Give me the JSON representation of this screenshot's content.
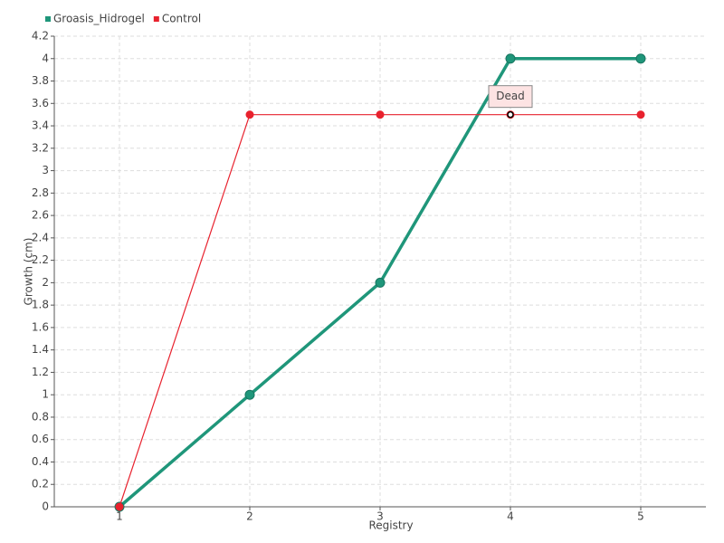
{
  "chart_data": {
    "type": "line",
    "x_label": "Registry",
    "y_label": "Growth (cm)",
    "x": [
      1,
      2,
      3,
      4,
      5
    ],
    "series": [
      {
        "name": "Groasis_Hidrogel",
        "color": "#1f967a",
        "values": [
          0,
          1,
          2,
          4,
          4
        ]
      },
      {
        "name": "Control",
        "color": "#e8222e",
        "values": [
          0,
          3.5,
          3.5,
          3.5,
          3.5
        ]
      }
    ],
    "xlim": [
      0.5,
      5.5
    ],
    "xticks": [
      1,
      2,
      3,
      4,
      5
    ],
    "ylim": [
      0,
      4.2
    ],
    "yticks": [
      0,
      0.2,
      0.4,
      0.6,
      0.8,
      1,
      1.2,
      1.4,
      1.6,
      1.8,
      2,
      2.2,
      2.4,
      2.6,
      2.8,
      3,
      3.2,
      3.4,
      3.6,
      3.8,
      4,
      4.2
    ],
    "grid": true,
    "legend": "top-left",
    "annotations": [
      {
        "text": "Dead",
        "x": 4,
        "y": 3.5
      }
    ]
  }
}
